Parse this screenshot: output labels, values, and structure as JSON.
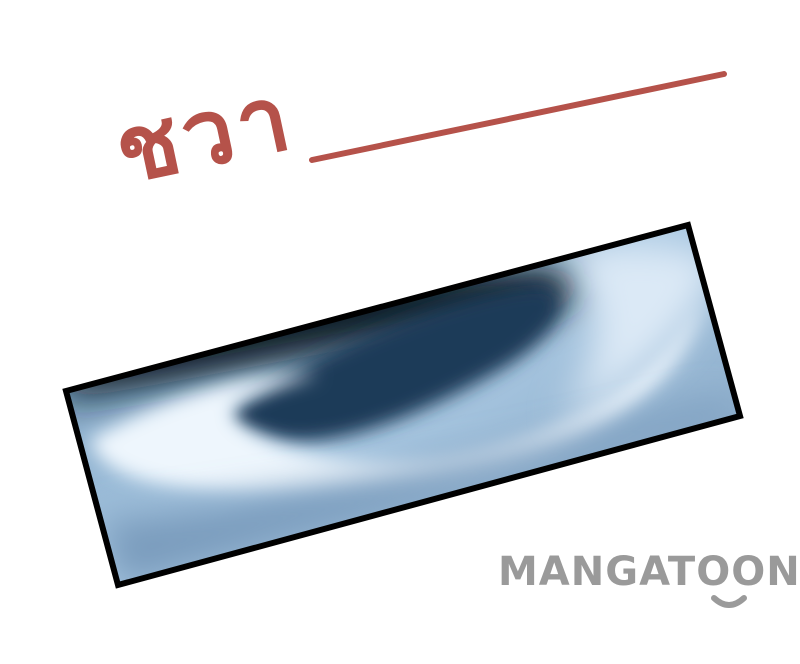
{
  "sfx": {
    "text": "ชวา",
    "color": "#b5524a"
  },
  "watermark": {
    "text": "MANGATOON",
    "color": "#9a9a9a"
  },
  "panel": {
    "border_color": "#000000",
    "palette": [
      "#0f1a28",
      "#2a4d6c",
      "#7ea6c8",
      "#e8f2fb"
    ]
  }
}
